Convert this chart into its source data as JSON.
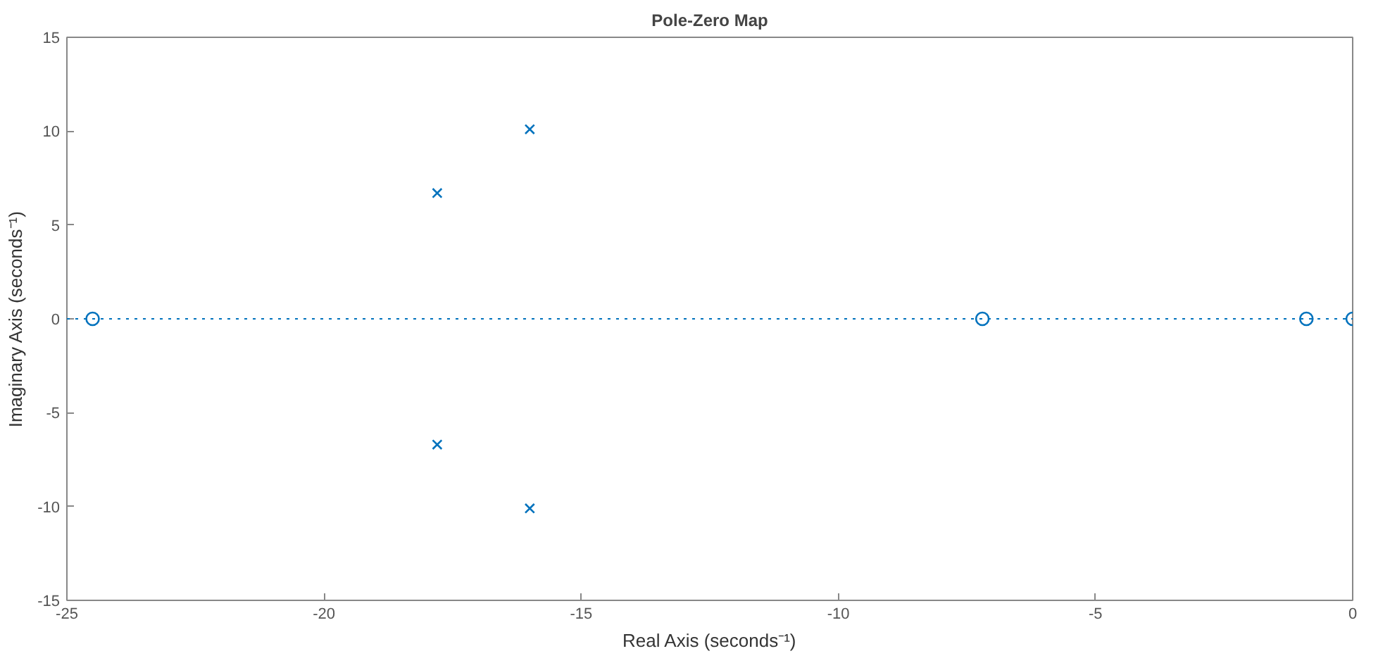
{
  "chart_data": {
    "type": "scatter",
    "title": "Pole-Zero Map",
    "xlabel": "Real Axis (seconds⁻¹)",
    "ylabel": "Imaginary Axis (seconds⁻¹)",
    "xlim": [
      -25,
      0
    ],
    "ylim": [
      -15,
      15
    ],
    "xticks": [
      -25,
      -20,
      -15,
      -10,
      -5,
      0
    ],
    "yticks": [
      -15,
      -10,
      -5,
      0,
      5,
      10,
      15
    ],
    "grid": false,
    "series": [
      {
        "marker": "cross",
        "color": "#0072bd",
        "x": [
          -17.8,
          -17.8,
          -16.0,
          -16.0
        ],
        "values": [
          6.7,
          -6.7,
          10.1,
          -10.1
        ]
      },
      {
        "marker": "circle",
        "color": "#0072bd",
        "x": [
          -24.5,
          -7.2,
          -0.9,
          0
        ],
        "values": [
          0,
          0,
          0,
          0
        ]
      }
    ],
    "ref_lines": [
      {
        "axis": "y",
        "value": 0,
        "line_style": "dotted",
        "color": "#0072bd"
      }
    ]
  }
}
